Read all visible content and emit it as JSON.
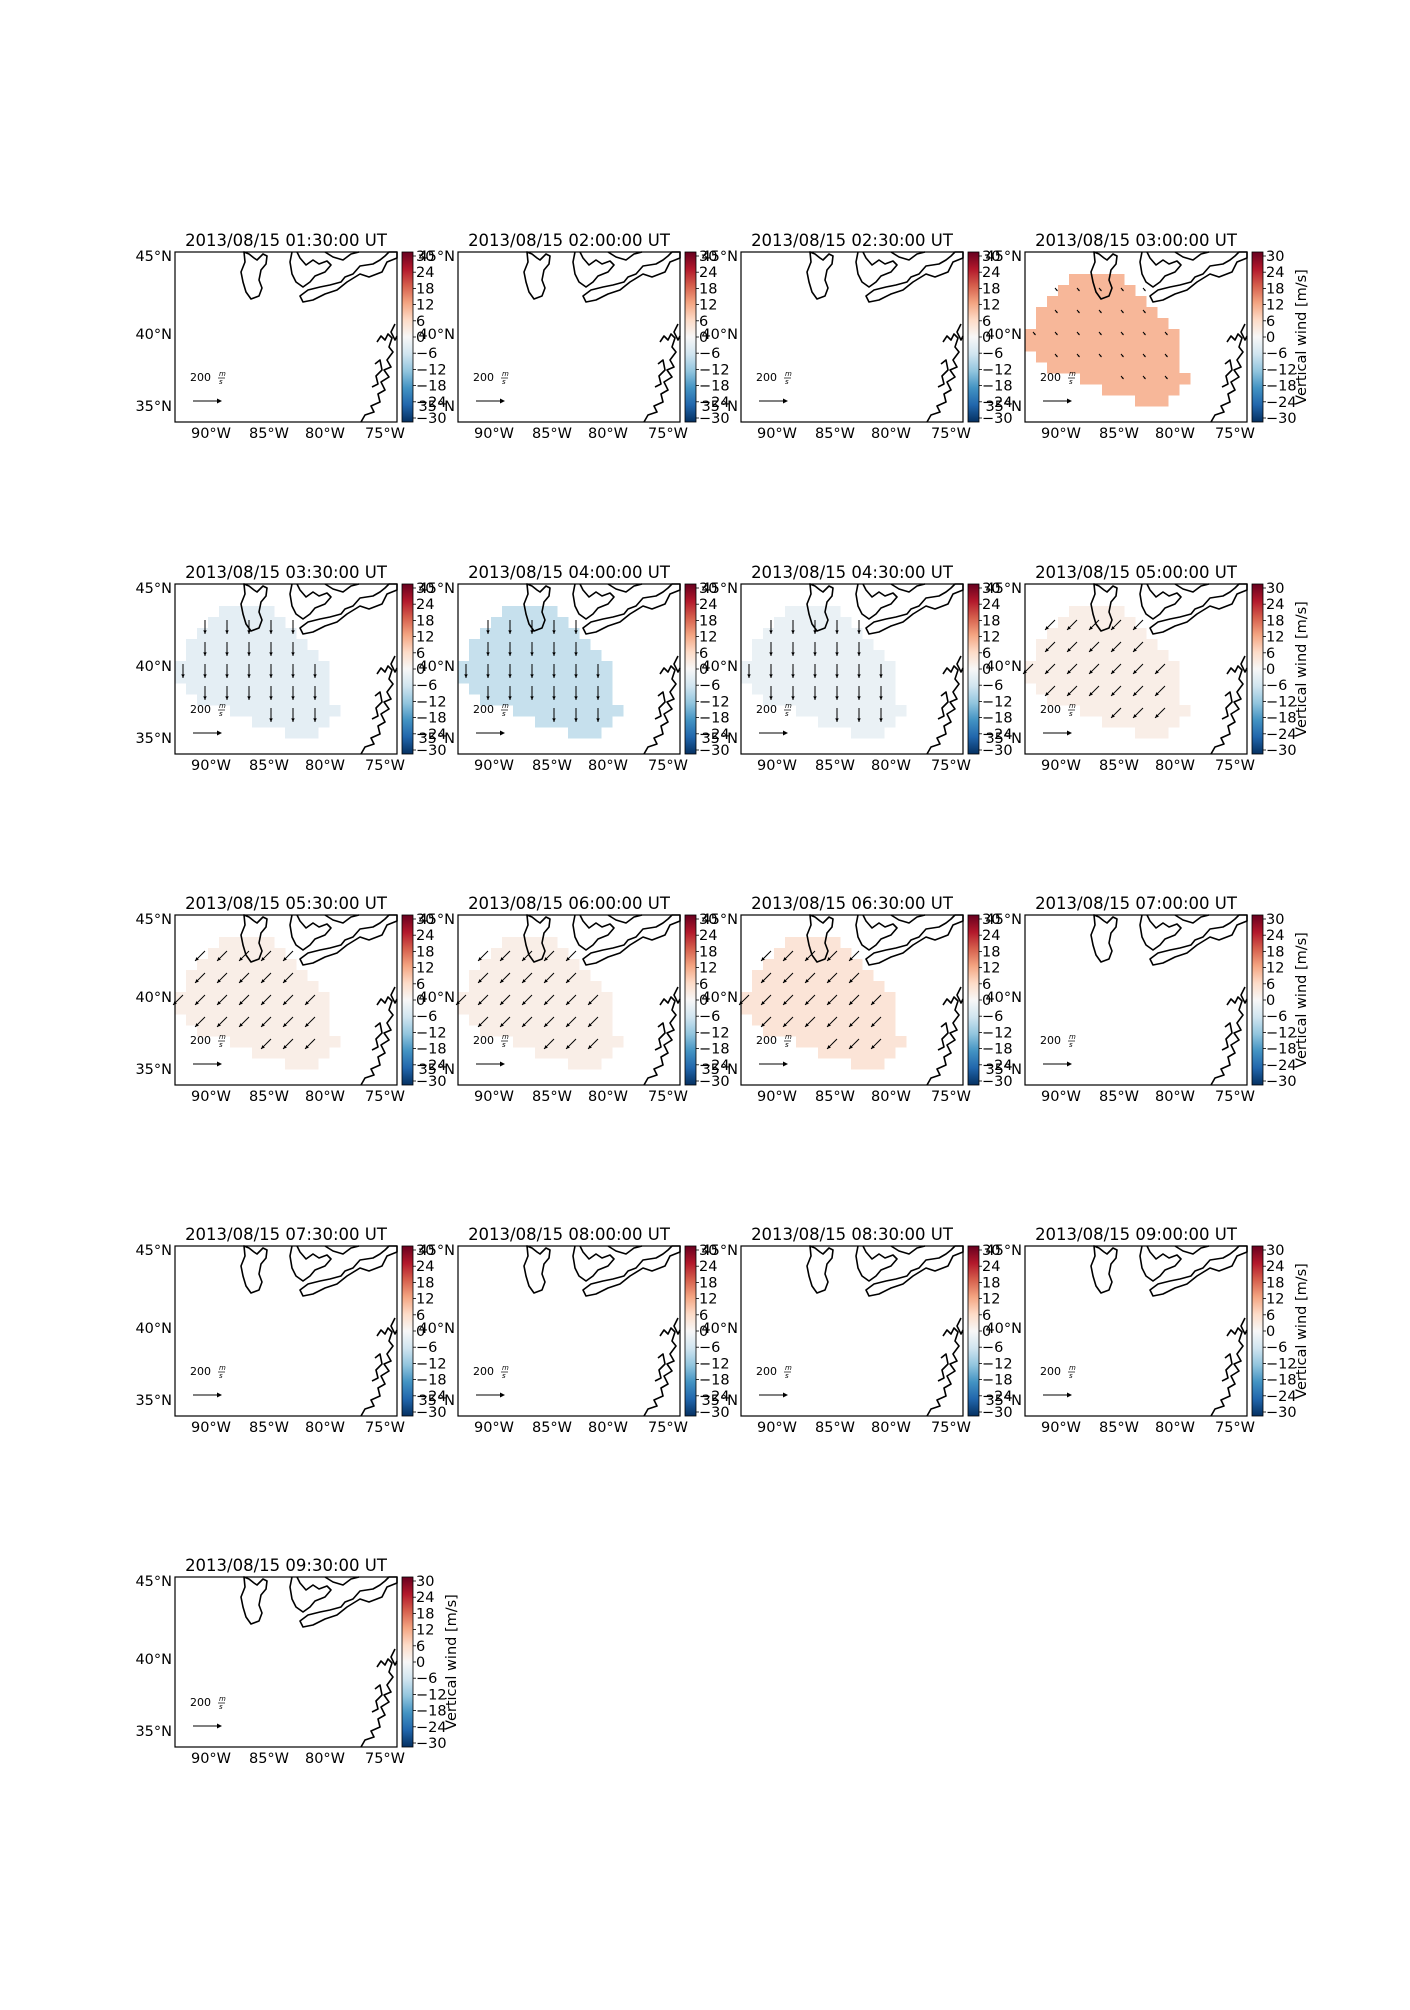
{
  "figure": {
    "colorbar": {
      "ticks": [
        "30",
        "24",
        "18",
        "12",
        "6",
        "0",
        "−6",
        "−12",
        "−18",
        "−24",
        "−30"
      ],
      "label": "Vertical wind [m/s]",
      "colors": [
        "#67001f",
        "#b2182b",
        "#d6604d",
        "#f4a582",
        "#fddbc7",
        "#f7f7f7",
        "#d1e5f0",
        "#92c5de",
        "#4393c3",
        "#2166ac",
        "#053061"
      ]
    },
    "axes": {
      "lon_labels": [
        "90°W",
        "85°W",
        "80°W",
        "75°W"
      ],
      "lat_labels": [
        "45°N",
        "40°N",
        "35°N"
      ]
    },
    "reference_arrow": {
      "value": "200",
      "unit_num": "m",
      "unit_den": "s"
    }
  },
  "panels": [
    {
      "title": "2013/08/15 01:30:00 UT",
      "vertical_wind_ms": null,
      "arrow_dir": null
    },
    {
      "title": "2013/08/15 02:00:00 UT",
      "vertical_wind_ms": null,
      "arrow_dir": null
    },
    {
      "title": "2013/08/15 02:30:00 UT",
      "vertical_wind_ms": null,
      "arrow_dir": null
    },
    {
      "title": "2013/08/15 03:00:00 UT",
      "vertical_wind_ms": 10,
      "arrow_dir": "se-small"
    },
    {
      "title": "2013/08/15 03:30:00 UT",
      "vertical_wind_ms": -3,
      "arrow_dir": "s"
    },
    {
      "title": "2013/08/15 04:00:00 UT",
      "vertical_wind_ms": -7,
      "arrow_dir": "s"
    },
    {
      "title": "2013/08/15 04:30:00 UT",
      "vertical_wind_ms": -2,
      "arrow_dir": "s"
    },
    {
      "title": "2013/08/15 05:00:00 UT",
      "vertical_wind_ms": 2,
      "arrow_dir": "sw"
    },
    {
      "title": "2013/08/15 05:30:00 UT",
      "vertical_wind_ms": 2,
      "arrow_dir": "sw"
    },
    {
      "title": "2013/08/15 06:00:00 UT",
      "vertical_wind_ms": 2,
      "arrow_dir": "sw"
    },
    {
      "title": "2013/08/15 06:30:00 UT",
      "vertical_wind_ms": 4,
      "arrow_dir": "sw"
    },
    {
      "title": "2013/08/15 07:00:00 UT",
      "vertical_wind_ms": null,
      "arrow_dir": null
    },
    {
      "title": "2013/08/15 07:30:00 UT",
      "vertical_wind_ms": null,
      "arrow_dir": null
    },
    {
      "title": "2013/08/15 08:00:00 UT",
      "vertical_wind_ms": null,
      "arrow_dir": null
    },
    {
      "title": "2013/08/15 08:30:00 UT",
      "vertical_wind_ms": null,
      "arrow_dir": null
    },
    {
      "title": "2013/08/15 09:00:00 UT",
      "vertical_wind_ms": null,
      "arrow_dir": null
    },
    {
      "title": "2013/08/15 09:30:00 UT",
      "vertical_wind_ms": null,
      "arrow_dir": null
    }
  ]
}
